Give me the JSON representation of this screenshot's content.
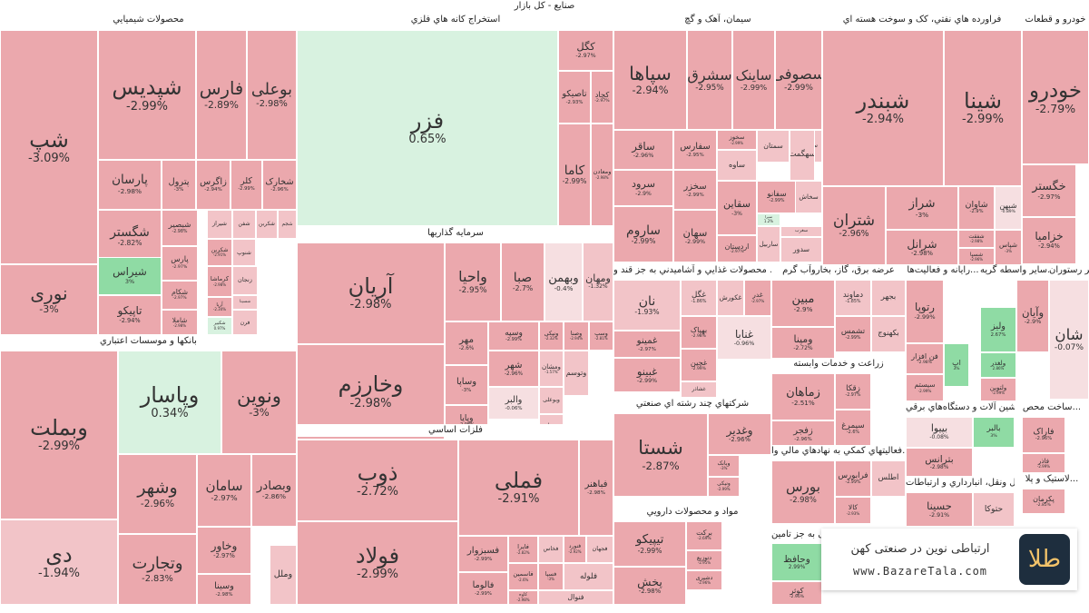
{
  "title": "صنایع - کل بازار",
  "brand": {
    "name": "ارتباطی نوین در صنعتی کهن",
    "url": "www.BazareTala.com",
    "logo_glyph": "طلا"
  },
  "colors": {
    "down_strong": "#eba8ad",
    "down_mid": "#f2c4c8",
    "down_light": "#f6dfe1",
    "up_strong": "#8fdba4",
    "up_light": "#d8f2e0",
    "neutral": "#e4e4e4"
  },
  "chart_data": {
    "type": "treemap",
    "sectors": [
      {
        "name": "محصولات شيميايي",
        "stocks": [
          {
            "symbol": "شپ",
            "change": "-3.09%"
          },
          {
            "symbol": "شپدیس",
            "change": "-2.99%"
          },
          {
            "symbol": "فارس",
            "change": "-2.89%"
          },
          {
            "symbol": "بوعلی",
            "change": "-2.98%"
          },
          {
            "symbol": "پارسان",
            "change": "-2.98%"
          },
          {
            "symbol": "پترول",
            "change": "-3%"
          },
          {
            "symbol": "زاگرس",
            "change": "-2.94%"
          },
          {
            "symbol": "کلر",
            "change": "-2.99%"
          },
          {
            "symbol": "شخارک",
            "change": "-2.96%"
          },
          {
            "symbol": "شگستر",
            "change": "-2.82%"
          },
          {
            "symbol": "شبصیر",
            "change": "-2.98%"
          },
          {
            "symbol": "شیراز",
            "change": ""
          },
          {
            "symbol": "شفن",
            "change": ""
          },
          {
            "symbol": "شکربن",
            "change": ""
          },
          {
            "symbol": "شجم",
            "change": ""
          },
          {
            "symbol": "شیراس",
            "change": "3%"
          },
          {
            "symbol": "پارس",
            "change": "-2.97%"
          },
          {
            "symbol": "شکربن",
            "change": "-2.91%"
          },
          {
            "symbol": "شنوپ",
            "change": ""
          },
          {
            "symbol": "نوری",
            "change": "-3%"
          },
          {
            "symbol": "تاپیکو",
            "change": "-2.94%"
          },
          {
            "symbol": "شکام",
            "change": "-2.97%"
          },
          {
            "symbol": "کرماشا",
            "change": "-2.98%"
          },
          {
            "symbol": "زنجان",
            "change": ""
          },
          {
            "symbol": "شاملا",
            "change": "-2.98%"
          },
          {
            "symbol": "آریا",
            "change": "-2.34%"
          },
          {
            "symbol": "شسینا",
            "change": ""
          },
          {
            "symbol": "شکبیر",
            "change": "0.97%"
          },
          {
            "symbol": "فرن",
            "change": ""
          }
        ]
      },
      {
        "name": "استخراج کانه هاي فلزي",
        "stocks": [
          {
            "symbol": "فزر",
            "change": "0.65%"
          },
          {
            "symbol": "کگل",
            "change": "-2.97%"
          },
          {
            "symbol": "تاصیکو",
            "change": "-2.93%"
          },
          {
            "symbol": "کچاد",
            "change": "-2.97%"
          },
          {
            "symbol": "کاما",
            "change": "-2.99%"
          },
          {
            "symbol": "ومعادن",
            "change": "-2.98%"
          }
        ]
      },
      {
        "name": "سیمان، آهک و گچ",
        "stocks": [
          {
            "symbol": "سپاها",
            "change": "-2.94%"
          },
          {
            "symbol": "سشرق",
            "change": "-2.95%"
          },
          {
            "symbol": "ساینک",
            "change": "-2.99%"
          },
          {
            "symbol": "سصوفی",
            "change": "-2.99%"
          },
          {
            "symbol": "ساقر",
            "change": "-2.96%"
          },
          {
            "symbol": "سفارس",
            "change": "-2.95%"
          },
          {
            "symbol": "سخوز",
            "change": "-2.99%"
          },
          {
            "symbol": "سرود",
            "change": "-2.9%"
          },
          {
            "symbol": "سخزر",
            "change": "-2.99%"
          },
          {
            "symbol": "ساروم",
            "change": "-2.99%"
          },
          {
            "symbol": "سهان",
            "change": "-2.99%"
          },
          {
            "symbol": "سقاین",
            "change": "-3%"
          },
          {
            "symbol": "اردستان",
            "change": "-2.97%"
          },
          {
            "symbol": "سفانو",
            "change": "-2.99%"
          },
          {
            "symbol": "سیرا",
            "change": "1.2%"
          },
          {
            "symbol": "سخاش",
            "change": ""
          },
          {
            "symbol": "ساوه",
            "change": ""
          },
          {
            "symbol": "سمتان",
            "change": ""
          },
          {
            "symbol": "سبهان",
            "change": ""
          },
          {
            "symbol": "سهگمت",
            "change": ""
          },
          {
            "symbol": "ساربیل",
            "change": ""
          },
          {
            "symbol": "سغرب",
            "change": ""
          },
          {
            "symbol": "سدور",
            "change": ""
          }
        ]
      },
      {
        "name": "فراورده هاي نفتي، کک و سوخت هسته اي",
        "stocks": [
          {
            "symbol": "شبندر",
            "change": "-2.94%"
          },
          {
            "symbol": "شینا",
            "change": "-2.99%"
          },
          {
            "symbol": "شتران",
            "change": "-2.96%"
          },
          {
            "symbol": "شراز",
            "change": "-3%"
          },
          {
            "symbol": "شاوان",
            "change": "-2.9%"
          },
          {
            "symbol": "شرانل",
            "change": "-2.98%"
          },
          {
            "symbol": "شفقت",
            "change": "-2.98%"
          },
          {
            "symbol": "شپاس",
            "change": "-3%"
          },
          {
            "symbol": "شبهن",
            "change": "-0.89%"
          },
          {
            "symbol": "شسپا",
            "change": "-2.96%"
          }
        ]
      },
      {
        "name": "خودرو و قطعات",
        "stocks": [
          {
            "symbol": "خودرو",
            "change": "-2.79%"
          },
          {
            "symbol": "خگستر",
            "change": "-2.97%"
          },
          {
            "symbol": "خزامیا",
            "change": "-2.94%"
          }
        ]
      },
      {
        "name": "سرمایه گذاریها",
        "stocks": [
          {
            "symbol": "آریان",
            "change": "-2.98%"
          },
          {
            "symbol": "واحیا",
            "change": "-2.95%"
          },
          {
            "symbol": "صبا",
            "change": "-2.7%"
          },
          {
            "symbol": "وبهمن",
            "change": "-0.4%"
          },
          {
            "symbol": "ومهان",
            "change": "-1.32%"
          },
          {
            "symbol": "وخارزم",
            "change": "-2.98%"
          },
          {
            "symbol": "مهر",
            "change": "-2.6%"
          },
          {
            "symbol": "وسپه",
            "change": "-2.99%"
          },
          {
            "symbol": "ونیکی",
            "change": "-2.32%"
          },
          {
            "symbol": "وصنا",
            "change": "-2.94%"
          },
          {
            "symbol": "وسپ",
            "change": "-2.81%"
          },
          {
            "symbol": "وساپا",
            "change": "-3%"
          },
          {
            "symbol": "شهر",
            "change": "-2.96%"
          },
          {
            "symbol": "ومشان",
            "change": "-1.57%"
          },
          {
            "symbol": "وپایا",
            "change": "-2.98%"
          },
          {
            "symbol": "والبر",
            "change": "-0.06%"
          },
          {
            "symbol": "وبوعلی",
            "change": ""
          },
          {
            "symbol": "وتوسم",
            "change": ""
          },
          {
            "symbol": "سبحان",
            "change": ""
          }
        ]
      },
      {
        "name": "بانکها و موسسات اعتباري",
        "stocks": [
          {
            "symbol": "وبملت",
            "change": "-2.99%"
          },
          {
            "symbol": "وپاسار",
            "change": "0.34%"
          },
          {
            "symbol": "ونوین",
            "change": "-3%"
          },
          {
            "symbol": "وشهر",
            "change": "-2.96%"
          },
          {
            "symbol": "سامان",
            "change": "-2.97%"
          },
          {
            "symbol": "وبصادر",
            "change": "-2.86%"
          },
          {
            "symbol": "دی",
            "change": "-1.94%"
          },
          {
            "symbol": "وتجارت",
            "change": "-2.83%"
          },
          {
            "symbol": "وخاور",
            "change": "-2.97%"
          },
          {
            "symbol": "وسینا",
            "change": "-2.98%"
          },
          {
            "symbol": "وملل",
            "change": ""
          }
        ]
      },
      {
        "name": "فلزات اساسي",
        "stocks": [
          {
            "symbol": "ذوب",
            "change": "-2.72%"
          },
          {
            "symbol": "فملی",
            "change": "-2.91%"
          },
          {
            "symbol": "فولاد",
            "change": "-2.99%"
          },
          {
            "symbol": "فباهنر",
            "change": "-2.98%"
          },
          {
            "symbol": "فسبزوار",
            "change": "-2.99%"
          },
          {
            "symbol": "فایرا",
            "change": "-2.82%"
          },
          {
            "symbol": "فخاس",
            "change": ""
          },
          {
            "symbol": "فالوما",
            "change": "-2.99%"
          },
          {
            "symbol": "فاسمین",
            "change": "-2.6%"
          },
          {
            "symbol": "کاوه",
            "change": "-2.98%"
          },
          {
            "symbol": "فسپا",
            "change": "-3%"
          },
          {
            "symbol": "فنورد",
            "change": "-2.92%"
          },
          {
            "symbol": "فجهان",
            "change": ""
          },
          {
            "symbol": "فلوله",
            "change": ""
          },
          {
            "symbol": "فنوال",
            "change": ""
          }
        ]
      },
      {
        "name": "محصولات غذايي و آشاميدني به جز قند و ...",
        "stocks": [
          {
            "symbol": "نان",
            "change": "-1.93%"
          },
          {
            "symbol": "غگل",
            "change": "-1.86%"
          },
          {
            "symbol": "غکورش",
            "change": ""
          },
          {
            "symbol": "غدر",
            "change": "-2.97%"
          },
          {
            "symbol": "غمینو",
            "change": "-2.97%"
          },
          {
            "symbol": "بهپاک",
            "change": "-2.98%"
          },
          {
            "symbol": "غبینو",
            "change": "-2.99%"
          },
          {
            "symbol": "غچین",
            "change": "-2.99%"
          },
          {
            "symbol": "غنابا",
            "change": "-0.96%"
          },
          {
            "symbol": "غشاذر",
            "change": ""
          }
        ]
      },
      {
        "name": "عرضه برق، گاز، بخاروآب گرم",
        "stocks": [
          {
            "symbol": "مبین",
            "change": "-2.9%"
          },
          {
            "symbol": "دماوند",
            "change": "-1.85%"
          },
          {
            "symbol": "بجهر",
            "change": ""
          },
          {
            "symbol": "ومپنا",
            "change": "-2.72%"
          },
          {
            "symbol": "تشمس",
            "change": "-2.99%"
          },
          {
            "symbol": "بکهنوج",
            "change": ""
          }
        ]
      },
      {
        "name": "رايانه و فعاليت‌ها...",
        "stocks": [
          {
            "symbol": "رتوپا",
            "change": "-2.99%"
          },
          {
            "symbol": "فن افزار",
            "change": "-2.98%"
          },
          {
            "symbol": "سیستم",
            "change": "-2.99%"
          },
          {
            "symbol": "اپ",
            "change": "3%"
          }
        ]
      },
      {
        "name": "ساير واسطه گريه...",
        "stocks": [
          {
            "symbol": "وآیان",
            "change": "-2.9%"
          },
          {
            "symbol": "ولیز",
            "change": "2.67%"
          },
          {
            "symbol": "ولغدر",
            "change": "2.86%"
          },
          {
            "symbol": "ولتوین",
            "change": "-2.99%"
          }
        ]
      },
      {
        "name": "ساير رستوران",
        "stocks": [
          {
            "symbol": "شان",
            "change": "-0.07%"
          }
        ]
      },
      {
        "name": "زراعت و خدمات وابسته",
        "stocks": [
          {
            "symbol": "زماهان",
            "change": "-2.51%"
          },
          {
            "symbol": "زقکا",
            "change": "-2.97%"
          },
          {
            "symbol": "زفجر",
            "change": "-2.96%"
          },
          {
            "symbol": "سیمرغ",
            "change": "-2.6%"
          }
        ]
      },
      {
        "name": "شرکتهاي چند رشته اي صنعتي",
        "stocks": [
          {
            "symbol": "شستا",
            "change": "-2.87%"
          },
          {
            "symbol": "وغدیر",
            "change": "-2.96%"
          },
          {
            "symbol": "وبانک",
            "change": "-3%"
          },
          {
            "symbol": "ونیکی",
            "change": "-2.99%"
          }
        ]
      },
      {
        "name": "مواد و محصولات دارويي",
        "stocks": [
          {
            "symbol": "تیپیکو",
            "change": "-2.99%"
          },
          {
            "symbol": "برکت",
            "change": "-2.69%"
          },
          {
            "symbol": "دتوزیع",
            "change": "-2.95%"
          },
          {
            "symbol": "دشیری",
            "change": "-2.96%"
          },
          {
            "symbol": "پخش",
            "change": "-2.98%"
          }
        ]
      },
      {
        "name": "فعاليتهاي کمکي به نهادهاي مالي وا...",
        "stocks": [
          {
            "symbol": "بورس",
            "change": "-2.98%"
          },
          {
            "symbol": "فرابورس",
            "change": "-2.99%"
          },
          {
            "symbol": "کالا",
            "change": "-2.93%"
          },
          {
            "symbol": "اطلس",
            "change": ""
          }
        ]
      },
      {
        "name": "بیمه و صندوق بازنشستگی به جز تامین...",
        "stocks": [
          {
            "symbol": "وحافظ",
            "change": "2.99%"
          },
          {
            "symbol": "کوثر",
            "change": "-2.96%"
          }
        ]
      },
      {
        "name": "ماشين آلات و دستگاه‌هاي برقي",
        "stocks": [
          {
            "symbol": "بپیوا",
            "change": "-0.08%"
          },
          {
            "symbol": "بالبر",
            "change": "3%"
          },
          {
            "symbol": "بترانس",
            "change": "-2.98%"
          }
        ]
      },
      {
        "name": "ساخت محص...",
        "stocks": [
          {
            "symbol": "فاراک",
            "change": "-2.96%"
          },
          {
            "symbol": "فاذر",
            "change": "-2.99%"
          }
        ]
      },
      {
        "name": "لاستیک و پلا...",
        "stocks": [
          {
            "symbol": "پکرمان",
            "change": "-2.85%"
          }
        ]
      },
      {
        "name": "حمل ونقل، انبارداري و ارتباطات",
        "stocks": [
          {
            "symbol": "حسینا",
            "change": "-2.91%"
          },
          {
            "symbol": "حتوکا",
            "change": ""
          }
        ]
      }
    ]
  }
}
